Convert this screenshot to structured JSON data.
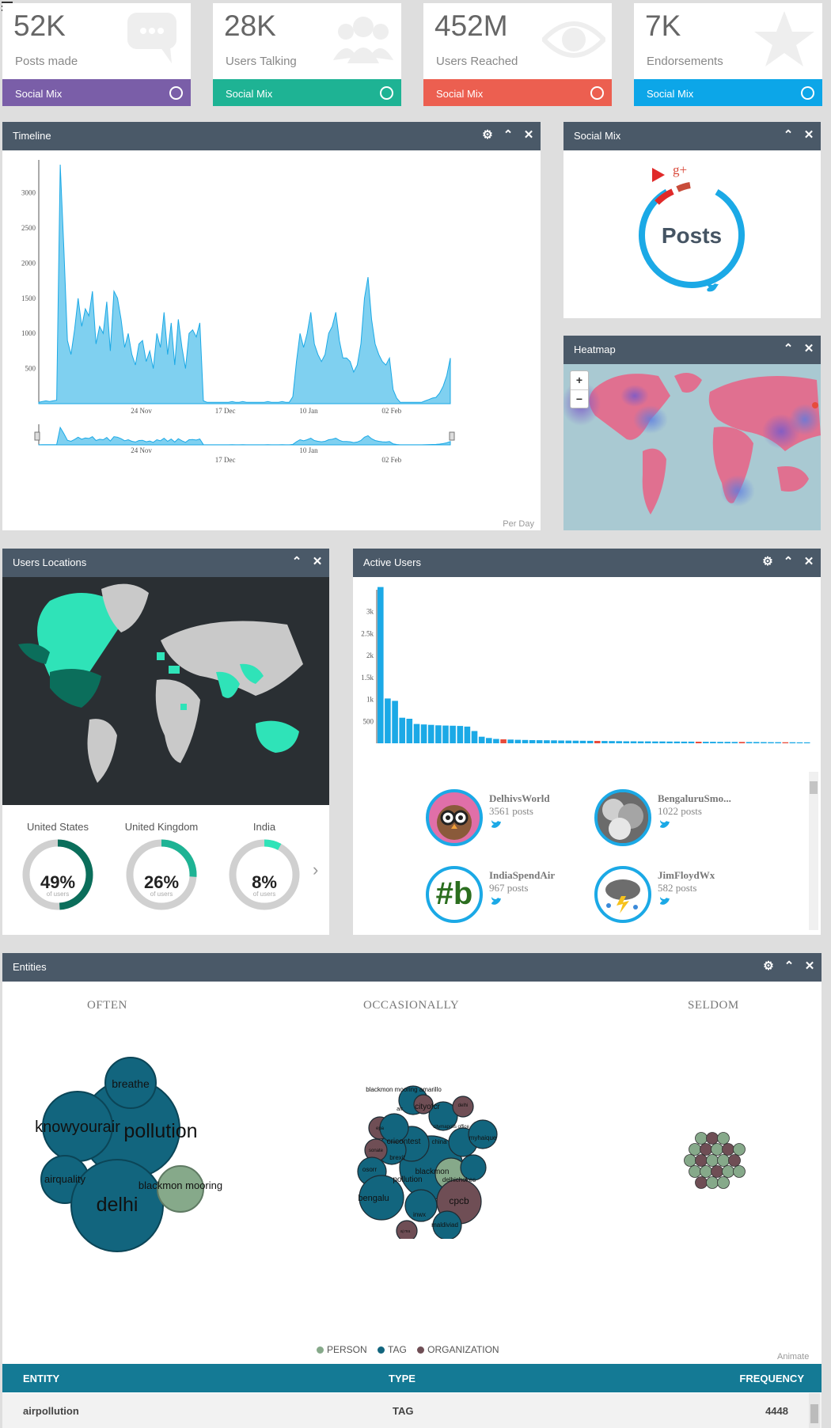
{
  "stats": [
    {
      "value": "52K",
      "label": "Posts made",
      "footer": "Social Mix",
      "color": "#7a5ea8",
      "icon": "chat-bubble-icon"
    },
    {
      "value": "28K",
      "label": "Users Talking",
      "footer": "Social Mix",
      "color": "#1eb394",
      "icon": "users-icon"
    },
    {
      "value": "452M",
      "label": "Users Reached",
      "footer": "Social Mix",
      "color": "#ec5f50",
      "icon": "eye-icon"
    },
    {
      "value": "7K",
      "label": "Endorsements",
      "footer": "Social Mix",
      "color": "#0ca6e8",
      "icon": "star-icon"
    }
  ],
  "timeline": {
    "title": "Timeline",
    "footer": "Per Day",
    "chart_data": {
      "type": "area",
      "x_ticks": [
        "24 Nov",
        "17 Dec",
        "10 Jan",
        "02 Feb"
      ],
      "y_ticks": [
        500,
        1000,
        1500,
        2000,
        2500,
        3000
      ],
      "ylim": [
        0,
        3400
      ],
      "values": [
        20,
        30,
        40,
        30,
        40,
        50,
        3400,
        2200,
        900,
        700,
        1050,
        1500,
        1100,
        1350,
        1250,
        1600,
        850,
        1100,
        1000,
        1450,
        750,
        1600,
        1500,
        1200,
        800,
        1000,
        700,
        550,
        850,
        900,
        600,
        750,
        500,
        1000,
        800,
        1300,
        700,
        1150,
        550,
        1200,
        800,
        500,
        1000,
        1050,
        950,
        1150,
        40,
        20,
        20,
        20,
        20,
        20,
        20,
        20,
        30,
        20,
        20,
        30,
        20,
        20,
        20,
        20,
        20,
        20,
        30,
        20,
        20,
        20,
        30,
        20,
        20,
        100,
        600,
        1000,
        800,
        1000,
        1300,
        850,
        700,
        600,
        700,
        1000,
        1100,
        1300,
        900,
        650,
        650,
        600,
        450,
        550,
        850,
        1500,
        1800,
        1200,
        850,
        700,
        600,
        550,
        650,
        200,
        80,
        20,
        20,
        20,
        20,
        20,
        20,
        20,
        40,
        60,
        80,
        90,
        150,
        250,
        400,
        650
      ]
    }
  },
  "social_mix": {
    "title": "Social Mix",
    "center": "Posts",
    "google_label": "g+"
  },
  "heatmap": {
    "title": "Heatmap",
    "zoom_in": "+",
    "zoom_out": "−"
  },
  "locations": {
    "title": "Users Locations",
    "countries": [
      {
        "name": "United States",
        "pct": "49%",
        "value": 0.49,
        "sub": "of users",
        "color": "#0b6e5b"
      },
      {
        "name": "United Kingdom",
        "pct": "26%",
        "value": 0.26,
        "sub": "of users",
        "color": "#1eb394"
      },
      {
        "name": "India",
        "pct": "8%",
        "value": 0.08,
        "sub": "of users",
        "color": "#2fe3b8"
      }
    ]
  },
  "active_users": {
    "title": "Active Users",
    "chart_data": {
      "type": "bar",
      "y_ticks": [
        "500",
        "1k",
        "1.5k",
        "2k",
        "2.5k",
        "3k"
      ],
      "ylim": [
        0,
        3500
      ],
      "values": [
        3561,
        1022,
        967,
        582,
        560,
        440,
        430,
        420,
        410,
        405,
        400,
        395,
        380,
        280,
        150,
        120,
        100,
        90,
        85,
        80,
        75,
        72,
        70,
        68,
        66,
        64,
        62,
        60,
        58,
        56,
        54,
        52,
        50,
        48,
        46,
        45,
        44,
        43,
        42,
        41,
        40,
        39,
        38,
        37,
        36,
        35,
        34,
        33,
        32,
        31,
        30,
        29,
        28,
        27,
        26,
        25,
        24,
        23,
        22,
        21
      ],
      "highlight": [
        17,
        30,
        44,
        50,
        56,
        63,
        70
      ]
    },
    "users": [
      {
        "name": "DelhivsWorld",
        "posts": "3561 posts"
      },
      {
        "name": "BengaluruSmo...",
        "posts": "1022 posts"
      },
      {
        "name": "IndiaSpendAir",
        "posts": "967 posts"
      },
      {
        "name": "JimFloydWx",
        "posts": "582 posts"
      }
    ]
  },
  "entities": {
    "title": "Entities",
    "columns": [
      "OFTEN",
      "OCCASIONALLY",
      "SELDOM"
    ],
    "often_bubbles": [
      {
        "label": "breathe"
      },
      {
        "label": "knowyourair"
      },
      {
        "label": "pollution"
      },
      {
        "label": "airquality"
      },
      {
        "label": "blackmon mooring"
      },
      {
        "label": "delhi"
      }
    ],
    "occ_labels": [
      "blackmon mooring amarillo",
      "cityofcr",
      "air",
      "delhi",
      "epa",
      "sonate",
      "citymapolis office",
      "cricontest",
      "china",
      "brexit",
      "myhaique",
      "osorr",
      "blackmon",
      "pollution",
      "delhichokes",
      "bengalu",
      "cpcb",
      "inwx",
      "maldiviad",
      "aj ma"
    ],
    "legend": [
      {
        "label": "PERSON",
        "color": "#86a98a"
      },
      {
        "label": "TAG",
        "color": "#12657e"
      },
      {
        "label": "ORGANIZATION",
        "color": "#6f4e55"
      }
    ],
    "animate": "Animate",
    "table": {
      "headers": [
        "ENTITY",
        "TYPE",
        "FREQUENCY"
      ],
      "rows": [
        {
          "entity": "airpollution",
          "type": "TAG",
          "frequency": "4448"
        }
      ]
    }
  },
  "colors": {
    "panel_header": "#4a5968",
    "tweet_blue": "#1ba9e6",
    "accent_red": "#e74c3c"
  }
}
